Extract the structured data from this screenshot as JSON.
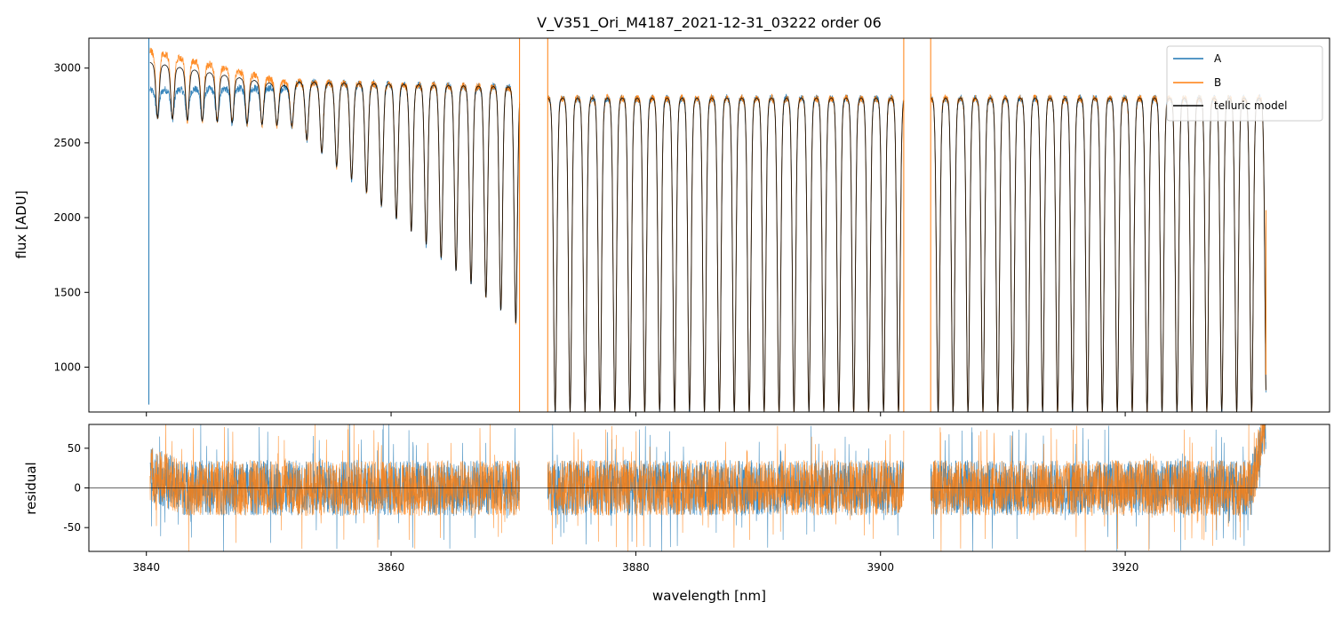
{
  "chart_data": [
    {
      "type": "line",
      "title": "V_V351_Ori_M4187_2021-12-31_03222  order 06",
      "xlabel": "",
      "ylabel": "flux [ADU]",
      "xlim": [
        3835.3,
        3936.7
      ],
      "ylim": [
        700,
        3200
      ],
      "yticks": [
        1000,
        1500,
        2000,
        2500,
        3000
      ],
      "xticks": [
        3840,
        3860,
        3880,
        3900,
        3920
      ],
      "continuum_model": {
        "segments": [
          [
            3840.3,
            3870.5
          ],
          [
            3872.8,
            3901.9
          ],
          [
            3904.1,
            3931.5
          ]
        ],
        "base_level": 2800,
        "line_spacing_nm": 1.22,
        "line_depth_min": 1270,
        "note": "deep periodic telluric absorption lines; depth increases toward 3870 and 3904"
      },
      "series": [
        {
          "name": "A",
          "color": "#1f77b4"
        },
        {
          "name": "B",
          "color": "#ff7f0e"
        },
        {
          "name": "telluric model",
          "color": "#000000"
        }
      ],
      "legend": {
        "location": "top-right",
        "entries": [
          "A",
          "B",
          "telluric model"
        ]
      }
    },
    {
      "type": "line",
      "title": "",
      "xlabel": "wavelength [nm]",
      "ylabel": "residual",
      "xlim": [
        3835.3,
        3936.7
      ],
      "ylim": [
        -80,
        80
      ],
      "yticks": [
        -50,
        0,
        50
      ],
      "xticks": [
        3840,
        3860,
        3880,
        3900,
        3920
      ],
      "xtick_labels": [
        "3840",
        "3860",
        "3880",
        "3900",
        "3920"
      ],
      "segments": [
        [
          3840.3,
          3870.5
        ],
        [
          3872.8,
          3901.9
        ],
        [
          3904.1,
          3931.5
        ]
      ],
      "noise_amplitude": 35,
      "zero_line": 0,
      "series": [
        {
          "name": "A",
          "color": "#1f77b4"
        },
        {
          "name": "B",
          "color": "#ff7f0e"
        }
      ]
    }
  ]
}
